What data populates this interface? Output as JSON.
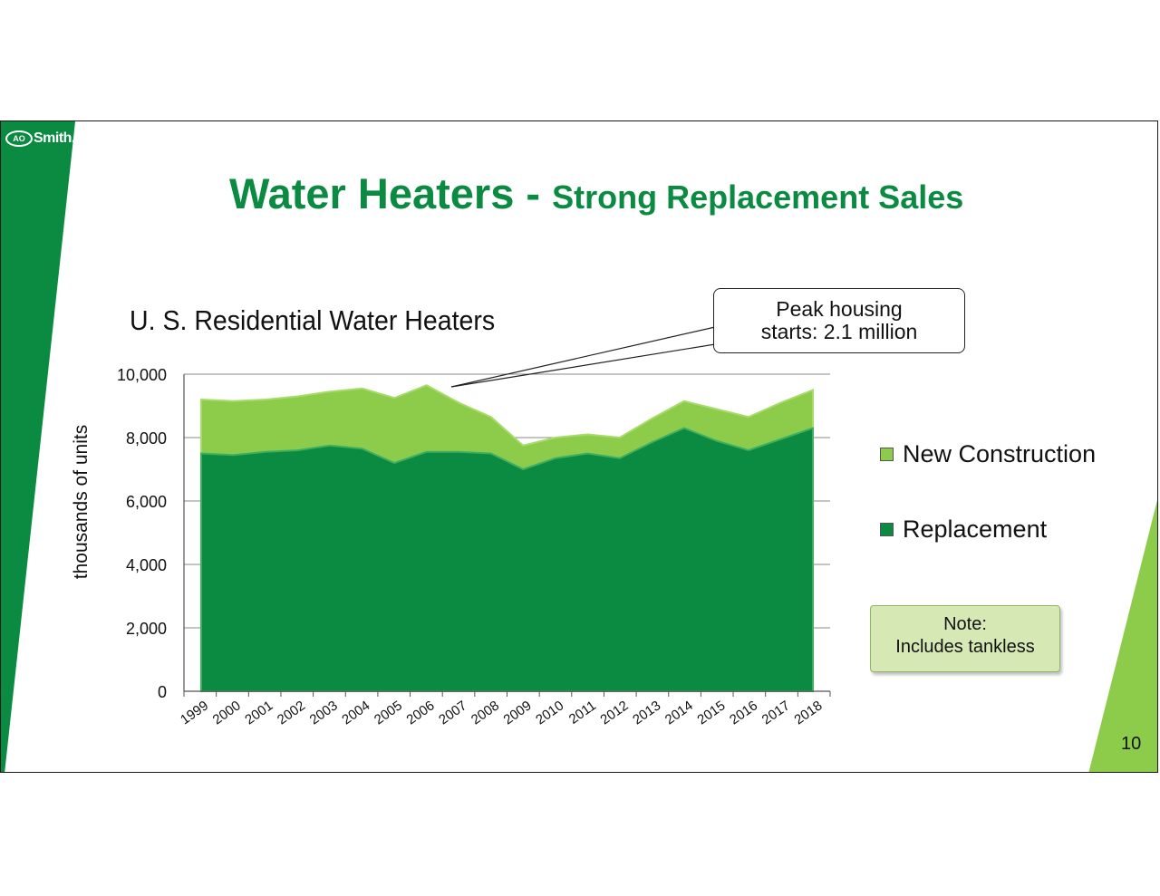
{
  "brand": {
    "logo_mark": "AO",
    "logo_word": "Smith.",
    "accent_dark": "#0b8a42",
    "accent_light": "#8ccc4a"
  },
  "title": {
    "main": "Water Heaters - ",
    "sub": "Strong Replacement Sales"
  },
  "callout": {
    "line1": "Peak housing",
    "line2": "starts: 2.1 million"
  },
  "note": {
    "line1": "Note:",
    "line2": "Includes tankless"
  },
  "page_number": "10",
  "chart_data": {
    "type": "area",
    "stacked": true,
    "title": "U. S. Residential Water Heaters",
    "xlabel": "",
    "ylabel": "thousands of units",
    "ylim": [
      0,
      10000
    ],
    "yticks": [
      "0",
      "2,000",
      "4,000",
      "6,000",
      "8,000",
      "10,000"
    ],
    "x": [
      "1999",
      "2000",
      "2001",
      "2002",
      "2003",
      "2004",
      "2005",
      "2006",
      "2007",
      "2008",
      "2009",
      "2010",
      "2011",
      "2012",
      "2013",
      "2014",
      "2015",
      "2016",
      "2017",
      "2018"
    ],
    "series": [
      {
        "name": "Replacement",
        "color": "#0b8a42",
        "values": [
          7500,
          7450,
          7550,
          7600,
          7750,
          7650,
          7200,
          7550,
          7550,
          7500,
          7000,
          7350,
          7500,
          7350,
          7850,
          8300,
          7900,
          7600,
          7950,
          8300
        ]
      },
      {
        "name": "New Construction",
        "color": "#8ccc4a",
        "values": [
          1700,
          1700,
          1650,
          1700,
          1700,
          1900,
          2050,
          2100,
          1550,
          1150,
          750,
          650,
          600,
          650,
          750,
          850,
          1000,
          1050,
          1150,
          1200
        ]
      }
    ],
    "legend_position": "right",
    "grid": true
  }
}
